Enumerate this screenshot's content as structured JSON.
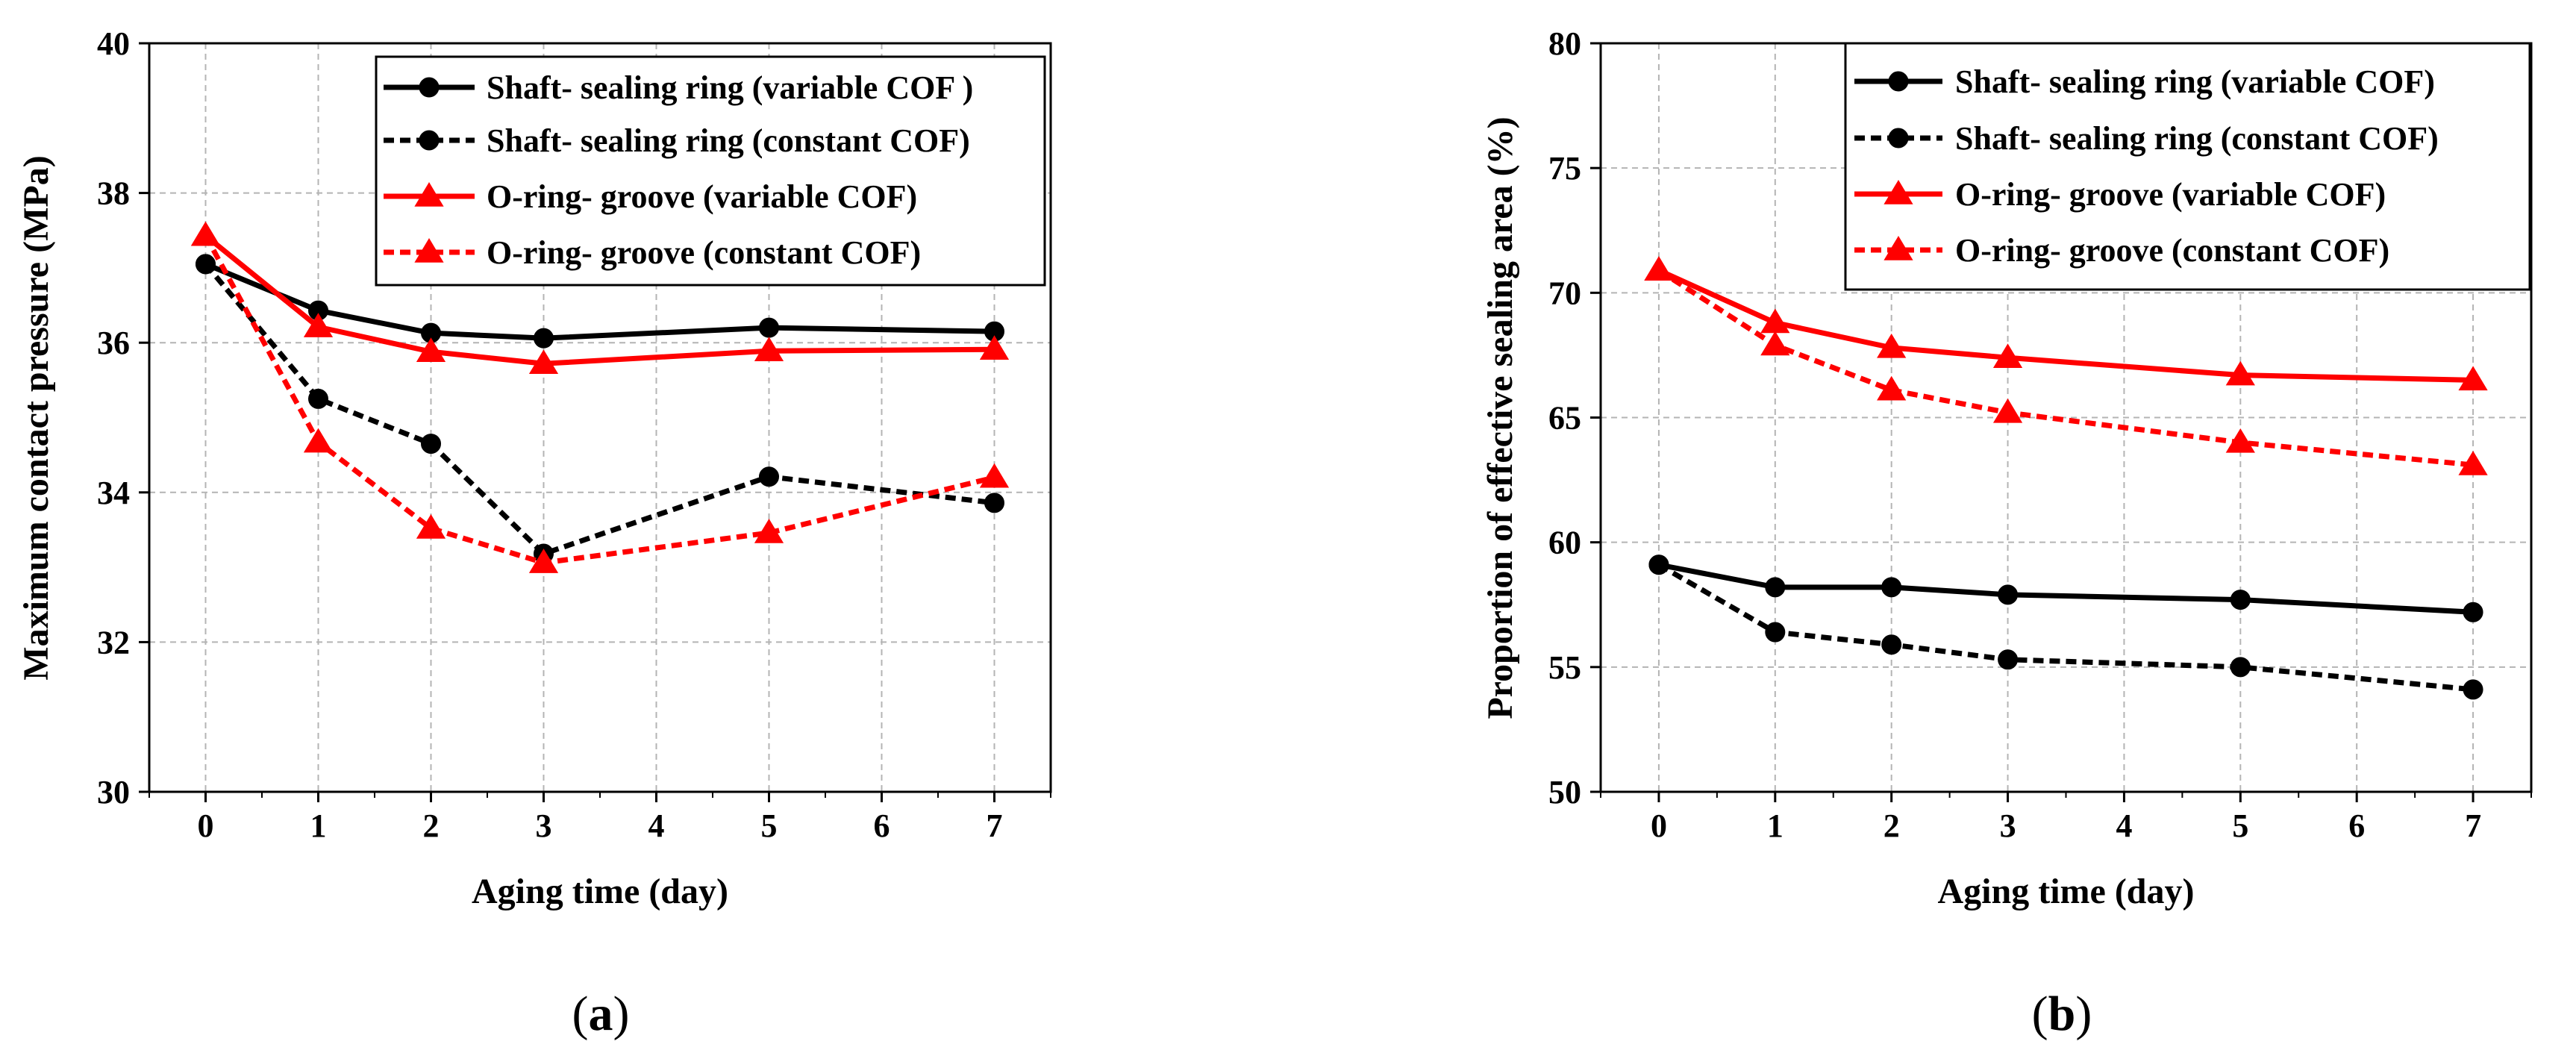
{
  "colors": {
    "black": "#000000",
    "red": "#ff0000",
    "grid": "#b4b4b4"
  },
  "chart_data": [
    {
      "type": "line",
      "panel_label": {
        "open": "(",
        "letter": "a",
        "close": ")"
      },
      "xlabel": "Aging time (day)",
      "ylabel": "Maximum contact pressure (MPa)",
      "xlim": [
        -0.5,
        7.5
      ],
      "ylim": [
        30,
        40
      ],
      "x_ticks": [
        0,
        1,
        2,
        3,
        4,
        5,
        6,
        7
      ],
      "y_ticks": [
        30,
        32,
        34,
        36,
        38,
        40
      ],
      "grid": true,
      "legend_position": "top-right",
      "series": [
        {
          "name": "Shaft- sealing ring (variable COF )",
          "color": "#000000",
          "dashed": false,
          "marker": "circle",
          "x": [
            0,
            1,
            2,
            3,
            5,
            7
          ],
          "y": [
            37.05,
            36.43,
            36.13,
            36.06,
            36.2,
            36.15
          ]
        },
        {
          "name": "Shaft- sealing ring (constant COF)",
          "color": "#000000",
          "dashed": true,
          "marker": "circle",
          "x": [
            0,
            1,
            2,
            3,
            5,
            7
          ],
          "y": [
            37.05,
            35.25,
            34.65,
            33.18,
            34.21,
            33.86
          ]
        },
        {
          "name": "O-ring- groove (variable COF)",
          "color": "#ff0000",
          "dashed": false,
          "marker": "triangle",
          "x": [
            0,
            1,
            2,
            3,
            5,
            7
          ],
          "y": [
            37.43,
            36.21,
            35.88,
            35.72,
            35.89,
            35.91
          ]
        },
        {
          "name": "O-ring- groove (constant COF)",
          "color": "#ff0000",
          "dashed": true,
          "marker": "triangle",
          "x": [
            0,
            1,
            2,
            3,
            5,
            7
          ],
          "y": [
            37.43,
            34.67,
            33.52,
            33.06,
            33.46,
            34.2
          ]
        }
      ]
    },
    {
      "type": "line",
      "panel_label": {
        "open": "(",
        "letter": "b",
        "close": ")"
      },
      "xlabel": "Aging time (day)",
      "ylabel": "Proportion of effective sealing area (%)",
      "xlim": [
        -0.5,
        7.5
      ],
      "ylim": [
        50,
        80
      ],
      "x_ticks": [
        0,
        1,
        2,
        3,
        4,
        5,
        6,
        7
      ],
      "y_ticks": [
        50,
        55,
        60,
        65,
        70,
        75,
        80
      ],
      "grid": true,
      "legend_position": "top-right",
      "series": [
        {
          "name": "Shaft- sealing ring (variable COF)",
          "color": "#000000",
          "dashed": false,
          "marker": "circle",
          "x": [
            0,
            1,
            2,
            3,
            5,
            7
          ],
          "y": [
            59.1,
            58.2,
            58.2,
            57.9,
            57.7,
            57.2
          ]
        },
        {
          "name": "Shaft- sealing ring (constant COF)",
          "color": "#000000",
          "dashed": true,
          "marker": "circle",
          "x": [
            0,
            1,
            2,
            3,
            5,
            7
          ],
          "y": [
            59.1,
            56.4,
            55.9,
            55.3,
            55.0,
            54.1
          ]
        },
        {
          "name": "O-ring- groove (variable COF)",
          "color": "#ff0000",
          "dashed": false,
          "marker": "triangle",
          "x": [
            0,
            1,
            2,
            3,
            5,
            7
          ],
          "y": [
            70.9,
            68.8,
            67.8,
            67.4,
            66.7,
            66.5
          ]
        },
        {
          "name": "O-ring- groove (constant COF)",
          "color": "#ff0000",
          "dashed": true,
          "marker": "triangle",
          "x": [
            0,
            1,
            2,
            3,
            5,
            7
          ],
          "y": [
            70.9,
            67.9,
            66.1,
            65.2,
            64.0,
            63.1
          ]
        }
      ]
    }
  ]
}
